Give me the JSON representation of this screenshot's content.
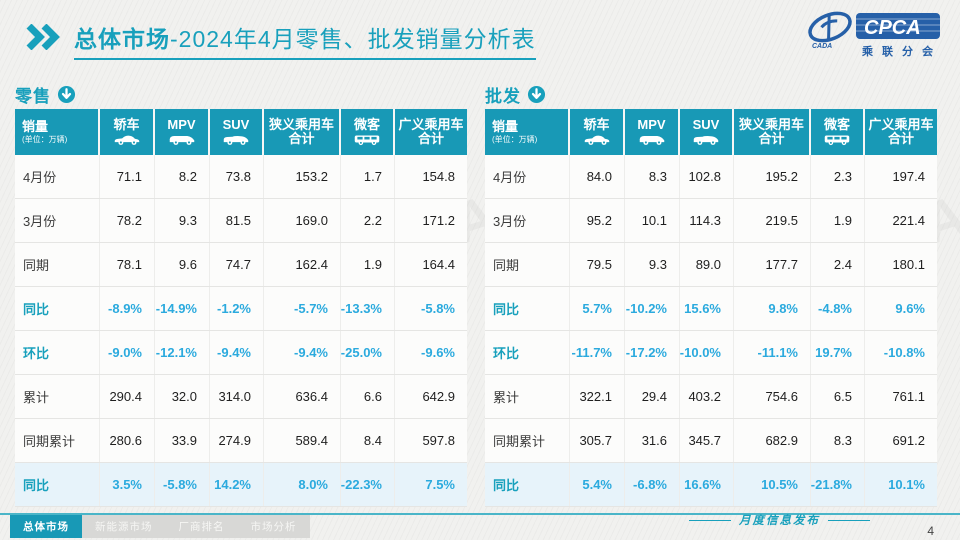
{
  "header": {
    "title_bold": "总体市场",
    "title_rest": "-2024年4月零售、批发销量分析表"
  },
  "logo": {
    "cpca": "CPCA",
    "cada": "CADA",
    "chinese": "乘联分会"
  },
  "watermark": "乘联分会 CPCA",
  "columns": [
    {
      "label": "销量",
      "sub": "(单位：万辆)"
    },
    {
      "label": "轿车",
      "icon": "sedan-icon"
    },
    {
      "label": "MPV",
      "icon": "mpv-icon"
    },
    {
      "label": "SUV",
      "icon": "suv-icon"
    },
    {
      "label": "狭义乘用车",
      "label2": "合计"
    },
    {
      "label": "微客",
      "icon": "van-icon"
    },
    {
      "label": "广义乘用车",
      "label2": "合计"
    }
  ],
  "tables": [
    {
      "name": "零售",
      "rows": [
        {
          "label": "4月份",
          "style": "normal",
          "values": [
            "71.1",
            "8.2",
            "73.8",
            "153.2",
            "1.7",
            "154.8"
          ]
        },
        {
          "label": "3月份",
          "style": "normal",
          "values": [
            "78.2",
            "9.3",
            "81.5",
            "169.0",
            "2.2",
            "171.2"
          ]
        },
        {
          "label": "同期",
          "style": "normal",
          "values": [
            "78.1",
            "9.6",
            "74.7",
            "162.4",
            "1.9",
            "164.4"
          ]
        },
        {
          "label": "同比",
          "style": "percent",
          "values": [
            "-8.9%",
            "-14.9%",
            "-1.2%",
            "-5.7%",
            "-13.3%",
            "-5.8%"
          ]
        },
        {
          "label": "环比",
          "style": "percent",
          "values": [
            "-9.0%",
            "-12.1%",
            "-9.4%",
            "-9.4%",
            "-25.0%",
            "-9.6%"
          ]
        },
        {
          "label": "累计",
          "style": "normal",
          "values": [
            "290.4",
            "32.0",
            "314.0",
            "636.4",
            "6.6",
            "642.9"
          ]
        },
        {
          "label": "同期累计",
          "style": "normal",
          "values": [
            "280.6",
            "33.9",
            "274.9",
            "589.4",
            "8.4",
            "597.8"
          ]
        },
        {
          "label": "同比",
          "style": "percent",
          "highlight": true,
          "values": [
            "3.5%",
            "-5.8%",
            "14.2%",
            "8.0%",
            "-22.3%",
            "7.5%"
          ]
        }
      ]
    },
    {
      "name": "批发",
      "rows": [
        {
          "label": "4月份",
          "style": "normal",
          "values": [
            "84.0",
            "8.3",
            "102.8",
            "195.2",
            "2.3",
            "197.4"
          ]
        },
        {
          "label": "3月份",
          "style": "normal",
          "values": [
            "95.2",
            "10.1",
            "114.3",
            "219.5",
            "1.9",
            "221.4"
          ]
        },
        {
          "label": "同期",
          "style": "normal",
          "values": [
            "79.5",
            "9.3",
            "89.0",
            "177.7",
            "2.4",
            "180.1"
          ]
        },
        {
          "label": "同比",
          "style": "percent",
          "values": [
            "5.7%",
            "-10.2%",
            "15.6%",
            "9.8%",
            "-4.8%",
            "9.6%"
          ]
        },
        {
          "label": "环比",
          "style": "percent",
          "values": [
            "-11.7%",
            "-17.2%",
            "-10.0%",
            "-11.1%",
            "19.7%",
            "-10.8%"
          ]
        },
        {
          "label": "累计",
          "style": "normal",
          "values": [
            "322.1",
            "29.4",
            "403.2",
            "754.6",
            "6.5",
            "761.1"
          ]
        },
        {
          "label": "同期累计",
          "style": "normal",
          "values": [
            "305.7",
            "31.6",
            "345.7",
            "682.9",
            "8.3",
            "691.2"
          ]
        },
        {
          "label": "同比",
          "style": "percent",
          "highlight": true,
          "values": [
            "5.4%",
            "-6.8%",
            "16.6%",
            "10.5%",
            "-21.8%",
            "10.1%"
          ]
        }
      ]
    }
  ],
  "footer": {
    "tabs": [
      {
        "label": "总体市场",
        "active": true
      },
      {
        "label": "新能源市场",
        "active": false
      },
      {
        "label": "厂商排名",
        "active": false
      },
      {
        "label": "市场分析",
        "active": false
      }
    ],
    "release_label": "月度信息发布",
    "page_number": "4"
  },
  "colors": {
    "accent_teal": "#1899b6",
    "percent_blue": "#2baade",
    "logo_blue": "#2660a8",
    "highlight_row": "#e7f3fa"
  }
}
